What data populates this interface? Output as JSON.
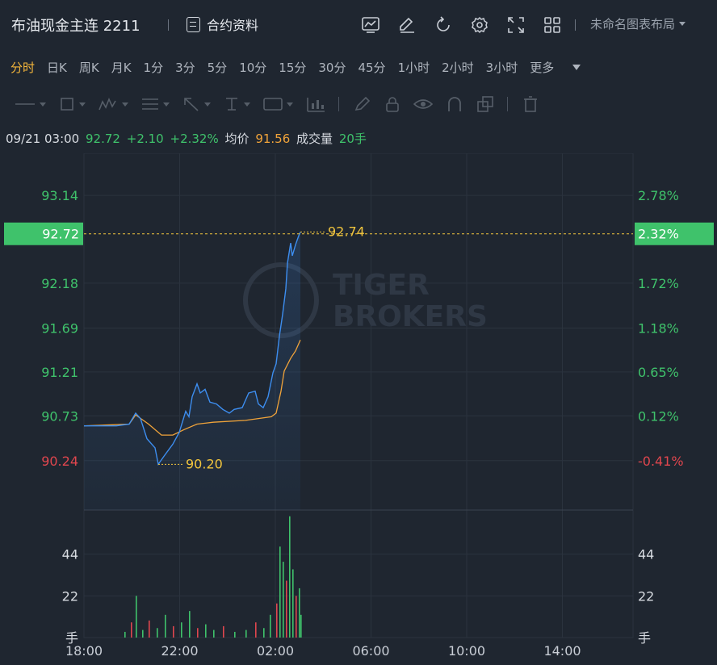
{
  "header": {
    "title": "布油现金主连 2211",
    "contract_label": "合约资料",
    "icons": [
      "chart-indicator-icon",
      "edit-icon",
      "refresh-icon",
      "settings-icon",
      "fullscreen-icon",
      "grid-layout-icon"
    ],
    "layout_label": "未命名图表布局"
  },
  "periods": [
    {
      "label": "分时",
      "active": true
    },
    {
      "label": "日K",
      "active": false
    },
    {
      "label": "周K",
      "active": false
    },
    {
      "label": "月K",
      "active": false
    },
    {
      "label": "1分",
      "active": false
    },
    {
      "label": "3分",
      "active": false
    },
    {
      "label": "5分",
      "active": false
    },
    {
      "label": "10分",
      "active": false
    },
    {
      "label": "15分",
      "active": false
    },
    {
      "label": "30分",
      "active": false
    },
    {
      "label": "45分",
      "active": false
    },
    {
      "label": "1小时",
      "active": false
    },
    {
      "label": "2小时",
      "active": false
    },
    {
      "label": "3小时",
      "active": false
    },
    {
      "label": "更多",
      "active": false
    }
  ],
  "info": {
    "time": "09/21 03:00",
    "price": "92.72",
    "change": "+2.10",
    "change_pct": "+2.32%",
    "avg_label": "均价",
    "avg_value": "91.56",
    "volume_label": "成交量",
    "volume_value": "20手"
  },
  "watermark": {
    "line1": "TIGER",
    "line2": "BROKERS"
  },
  "colors": {
    "up": "#3fc26b",
    "down": "#e0464e",
    "price_line": "#3d8ef0",
    "avg_line": "#f0a33a",
    "marker": "#f2c53d",
    "grid": "#2b333e"
  },
  "chart_data": {
    "type": "line",
    "x_ticks": [
      "18:00",
      "22:00",
      "02:00",
      "06:00",
      "10:00",
      "14:00"
    ],
    "y_ticks": [
      "93.14",
      "92.18",
      "91.69",
      "91.21",
      "90.73",
      "90.24"
    ],
    "y_ticks_pct": [
      "2.78%",
      "1.72%",
      "1.18%",
      "0.65%",
      "0.12%",
      "-0.41%"
    ],
    "y_range": [
      89.7,
      93.6
    ],
    "current_price": "92.72",
    "current_pct": "2.32%",
    "high_label": "92.74",
    "low_label": "90.20",
    "high": 92.74,
    "low": 90.2,
    "volume_ticks": [
      "44",
      "22"
    ],
    "volume_unit": "手",
    "volume_max": 66,
    "price_series": [
      [
        0,
        90.62
      ],
      [
        40,
        90.62
      ],
      [
        56,
        90.64
      ],
      [
        64,
        90.76
      ],
      [
        70,
        90.7
      ],
      [
        78,
        90.48
      ],
      [
        88,
        90.38
      ],
      [
        92,
        90.2
      ],
      [
        100,
        90.3
      ],
      [
        110,
        90.42
      ],
      [
        118,
        90.55
      ],
      [
        126,
        90.78
      ],
      [
        130,
        90.72
      ],
      [
        134,
        90.94
      ],
      [
        140,
        91.08
      ],
      [
        144,
        90.98
      ],
      [
        150,
        91.02
      ],
      [
        156,
        90.88
      ],
      [
        164,
        90.86
      ],
      [
        172,
        90.8
      ],
      [
        180,
        90.76
      ],
      [
        186,
        90.8
      ],
      [
        196,
        90.82
      ],
      [
        204,
        90.98
      ],
      [
        212,
        91.0
      ],
      [
        216,
        90.86
      ],
      [
        222,
        90.82
      ],
      [
        228,
        90.94
      ],
      [
        234,
        91.2
      ],
      [
        238,
        91.3
      ],
      [
        242,
        91.6
      ],
      [
        246,
        91.84
      ],
      [
        250,
        92.12
      ],
      [
        252,
        92.4
      ],
      [
        256,
        92.62
      ],
      [
        258,
        92.48
      ],
      [
        262,
        92.6
      ],
      [
        266,
        92.7
      ],
      [
        268,
        92.74
      ]
    ],
    "avg_series": [
      [
        0,
        90.62
      ],
      [
        56,
        90.64
      ],
      [
        64,
        90.74
      ],
      [
        80,
        90.64
      ],
      [
        96,
        90.52
      ],
      [
        110,
        90.52
      ],
      [
        124,
        90.58
      ],
      [
        140,
        90.64
      ],
      [
        160,
        90.66
      ],
      [
        200,
        90.68
      ],
      [
        232,
        90.72
      ],
      [
        238,
        90.76
      ],
      [
        244,
        91.0
      ],
      [
        248,
        91.22
      ],
      [
        256,
        91.36
      ],
      [
        262,
        91.44
      ],
      [
        268,
        91.56
      ]
    ],
    "volume_series": [
      [
        50,
        3
      ],
      [
        58,
        8
      ],
      [
        64,
        22
      ],
      [
        72,
        4
      ],
      [
        80,
        9
      ],
      [
        90,
        5
      ],
      [
        100,
        12
      ],
      [
        110,
        6
      ],
      [
        120,
        8
      ],
      [
        130,
        14
      ],
      [
        140,
        5
      ],
      [
        150,
        7
      ],
      [
        160,
        4
      ],
      [
        172,
        6
      ],
      [
        186,
        3
      ],
      [
        200,
        4
      ],
      [
        212,
        8
      ],
      [
        222,
        5
      ],
      [
        230,
        12
      ],
      [
        238,
        18
      ],
      [
        242,
        48
      ],
      [
        246,
        40
      ],
      [
        250,
        30
      ],
      [
        254,
        64
      ],
      [
        258,
        36
      ],
      [
        262,
        22
      ],
      [
        266,
        26
      ],
      [
        268,
        12
      ]
    ]
  }
}
